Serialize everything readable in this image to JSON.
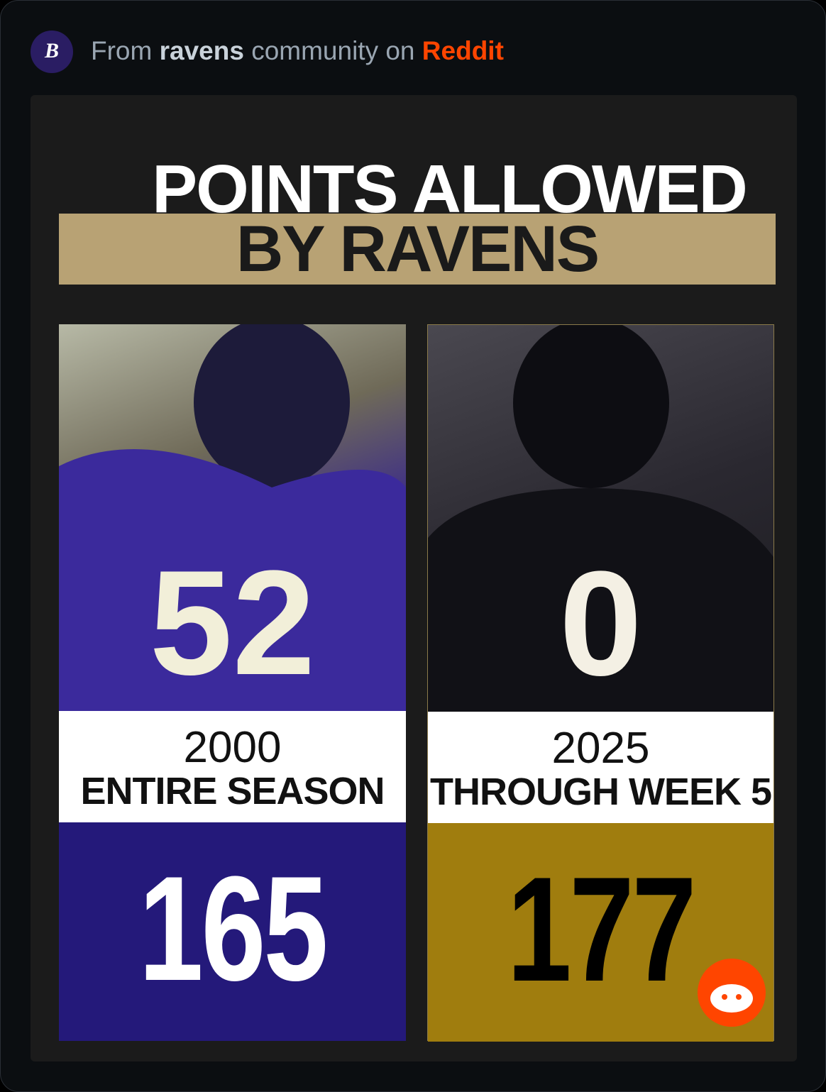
{
  "header": {
    "prefix": "From",
    "community": "ravens",
    "middle": "community on",
    "platform": "Reddit"
  },
  "graphic": {
    "title": "POINTS ALLOWED",
    "subtitle": "BY RAVENS",
    "panels": [
      {
        "jersey": "52",
        "year": "2000",
        "label": "ENTIRE SEASON",
        "points": 165
      },
      {
        "jersey": "0",
        "year": "2025",
        "label": "THROUGH WEEK 5",
        "points": 177
      }
    ]
  }
}
